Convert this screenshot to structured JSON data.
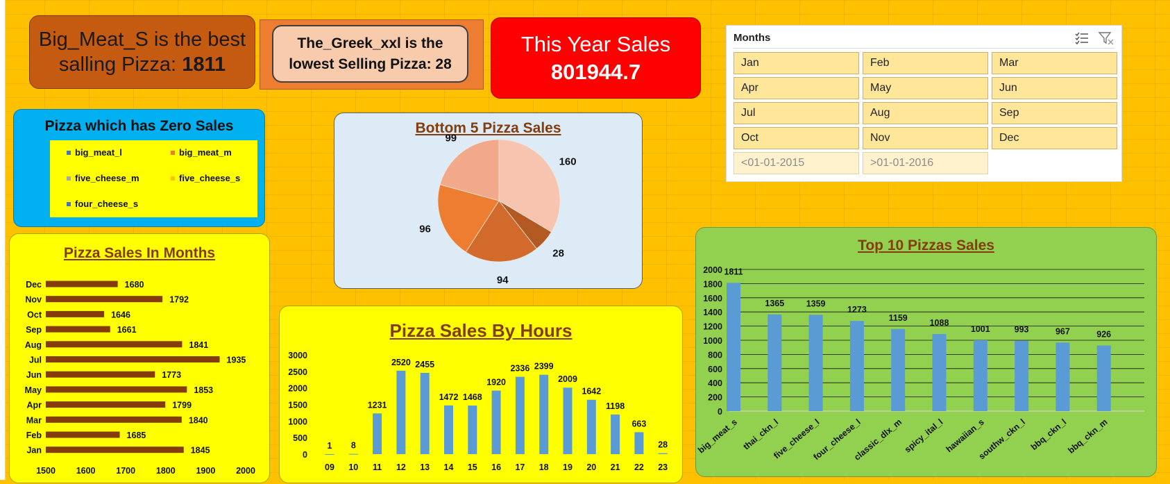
{
  "kpi": {
    "best_line1": "Big_Meat_S is the best",
    "best_line2": "salling Pizza: ",
    "best_value": "1811",
    "lowest_line1": "The_Greek_xxl is the",
    "lowest_line2": "lowest Selling Pizza: 28",
    "sales_title": "This Year Sales",
    "sales_value": "801944.7"
  },
  "slicer": {
    "title": "Months",
    "items": [
      "Jan",
      "Feb",
      "Mar",
      "Apr",
      "May",
      "Jun",
      "Jul",
      "Aug",
      "Sep",
      "Oct",
      "Nov",
      "Dec"
    ],
    "disabled_items": [
      "<01-01-2015",
      ">01-01-2016"
    ]
  },
  "zero_sales": {
    "title": "Pizza which has Zero Sales",
    "items": [
      {
        "label": "big_meat_l",
        "color": "#4472C4"
      },
      {
        "label": "big_meat_m",
        "color": "#ED7D31"
      },
      {
        "label": "five_cheese_m",
        "color": "#A5A5A5"
      },
      {
        "label": "five_cheese_s",
        "color": "#FFC000"
      },
      {
        "label": "four_cheese_s",
        "color": "#4472C4"
      }
    ]
  },
  "chart_data": [
    {
      "type": "pie",
      "title": "Bottom 5 Pizza Sales",
      "values": [
        160,
        28,
        94,
        96,
        99
      ],
      "colors": [
        "#F6C4AF",
        "#B35A22",
        "#D26A2B",
        "#ED7D31",
        "#F2A98A"
      ]
    },
    {
      "type": "bar",
      "orientation": "horizontal",
      "title": "Pizza Sales In Months",
      "categories": [
        "Dec",
        "Nov",
        "Oct",
        "Sep",
        "Aug",
        "Jul",
        "Jun",
        "May",
        "Apr",
        "Mar",
        "Feb",
        "Jan"
      ],
      "values": [
        1680,
        1792,
        1646,
        1661,
        1841,
        1935,
        1773,
        1853,
        1799,
        1840,
        1685,
        1845
      ],
      "xlim": [
        1500,
        2000
      ],
      "xticks": [
        1500,
        1600,
        1700,
        1800,
        1900,
        2000
      ],
      "color": "#843C0C"
    },
    {
      "type": "bar",
      "title": "Pizza Sales By Hours",
      "categories": [
        "09",
        "10",
        "11",
        "12",
        "13",
        "14",
        "15",
        "16",
        "17",
        "18",
        "19",
        "20",
        "21",
        "22",
        "23"
      ],
      "values": [
        1,
        8,
        1231,
        2520,
        2455,
        1472,
        1468,
        1920,
        2336,
        2399,
        2009,
        1642,
        1198,
        663,
        28
      ],
      "ylim": [
        0,
        3000
      ],
      "yticks": [
        0,
        500,
        1000,
        1500,
        2000,
        2500,
        3000
      ],
      "color": "#5B9BD5"
    },
    {
      "type": "bar",
      "title": "Top 10 Pizzas Sales",
      "categories": [
        "big_meat_s",
        "thai_ckn_l",
        "five_cheese_l",
        "four_cheese_l",
        "classic_dlx_m",
        "spicy_ital_l",
        "hawaiian_s",
        "southw_ckn_l",
        "bbq_ckn_l",
        "bbq_ckn_m"
      ],
      "values": [
        1811,
        1365,
        1359,
        1273,
        1159,
        1088,
        1001,
        993,
        967,
        926
      ],
      "ylim": [
        0,
        2000
      ],
      "yticks": [
        0,
        200,
        400,
        600,
        800,
        1000,
        1200,
        1400,
        1600,
        1800,
        2000
      ],
      "grid": true,
      "color": "#5B9BD5"
    }
  ]
}
